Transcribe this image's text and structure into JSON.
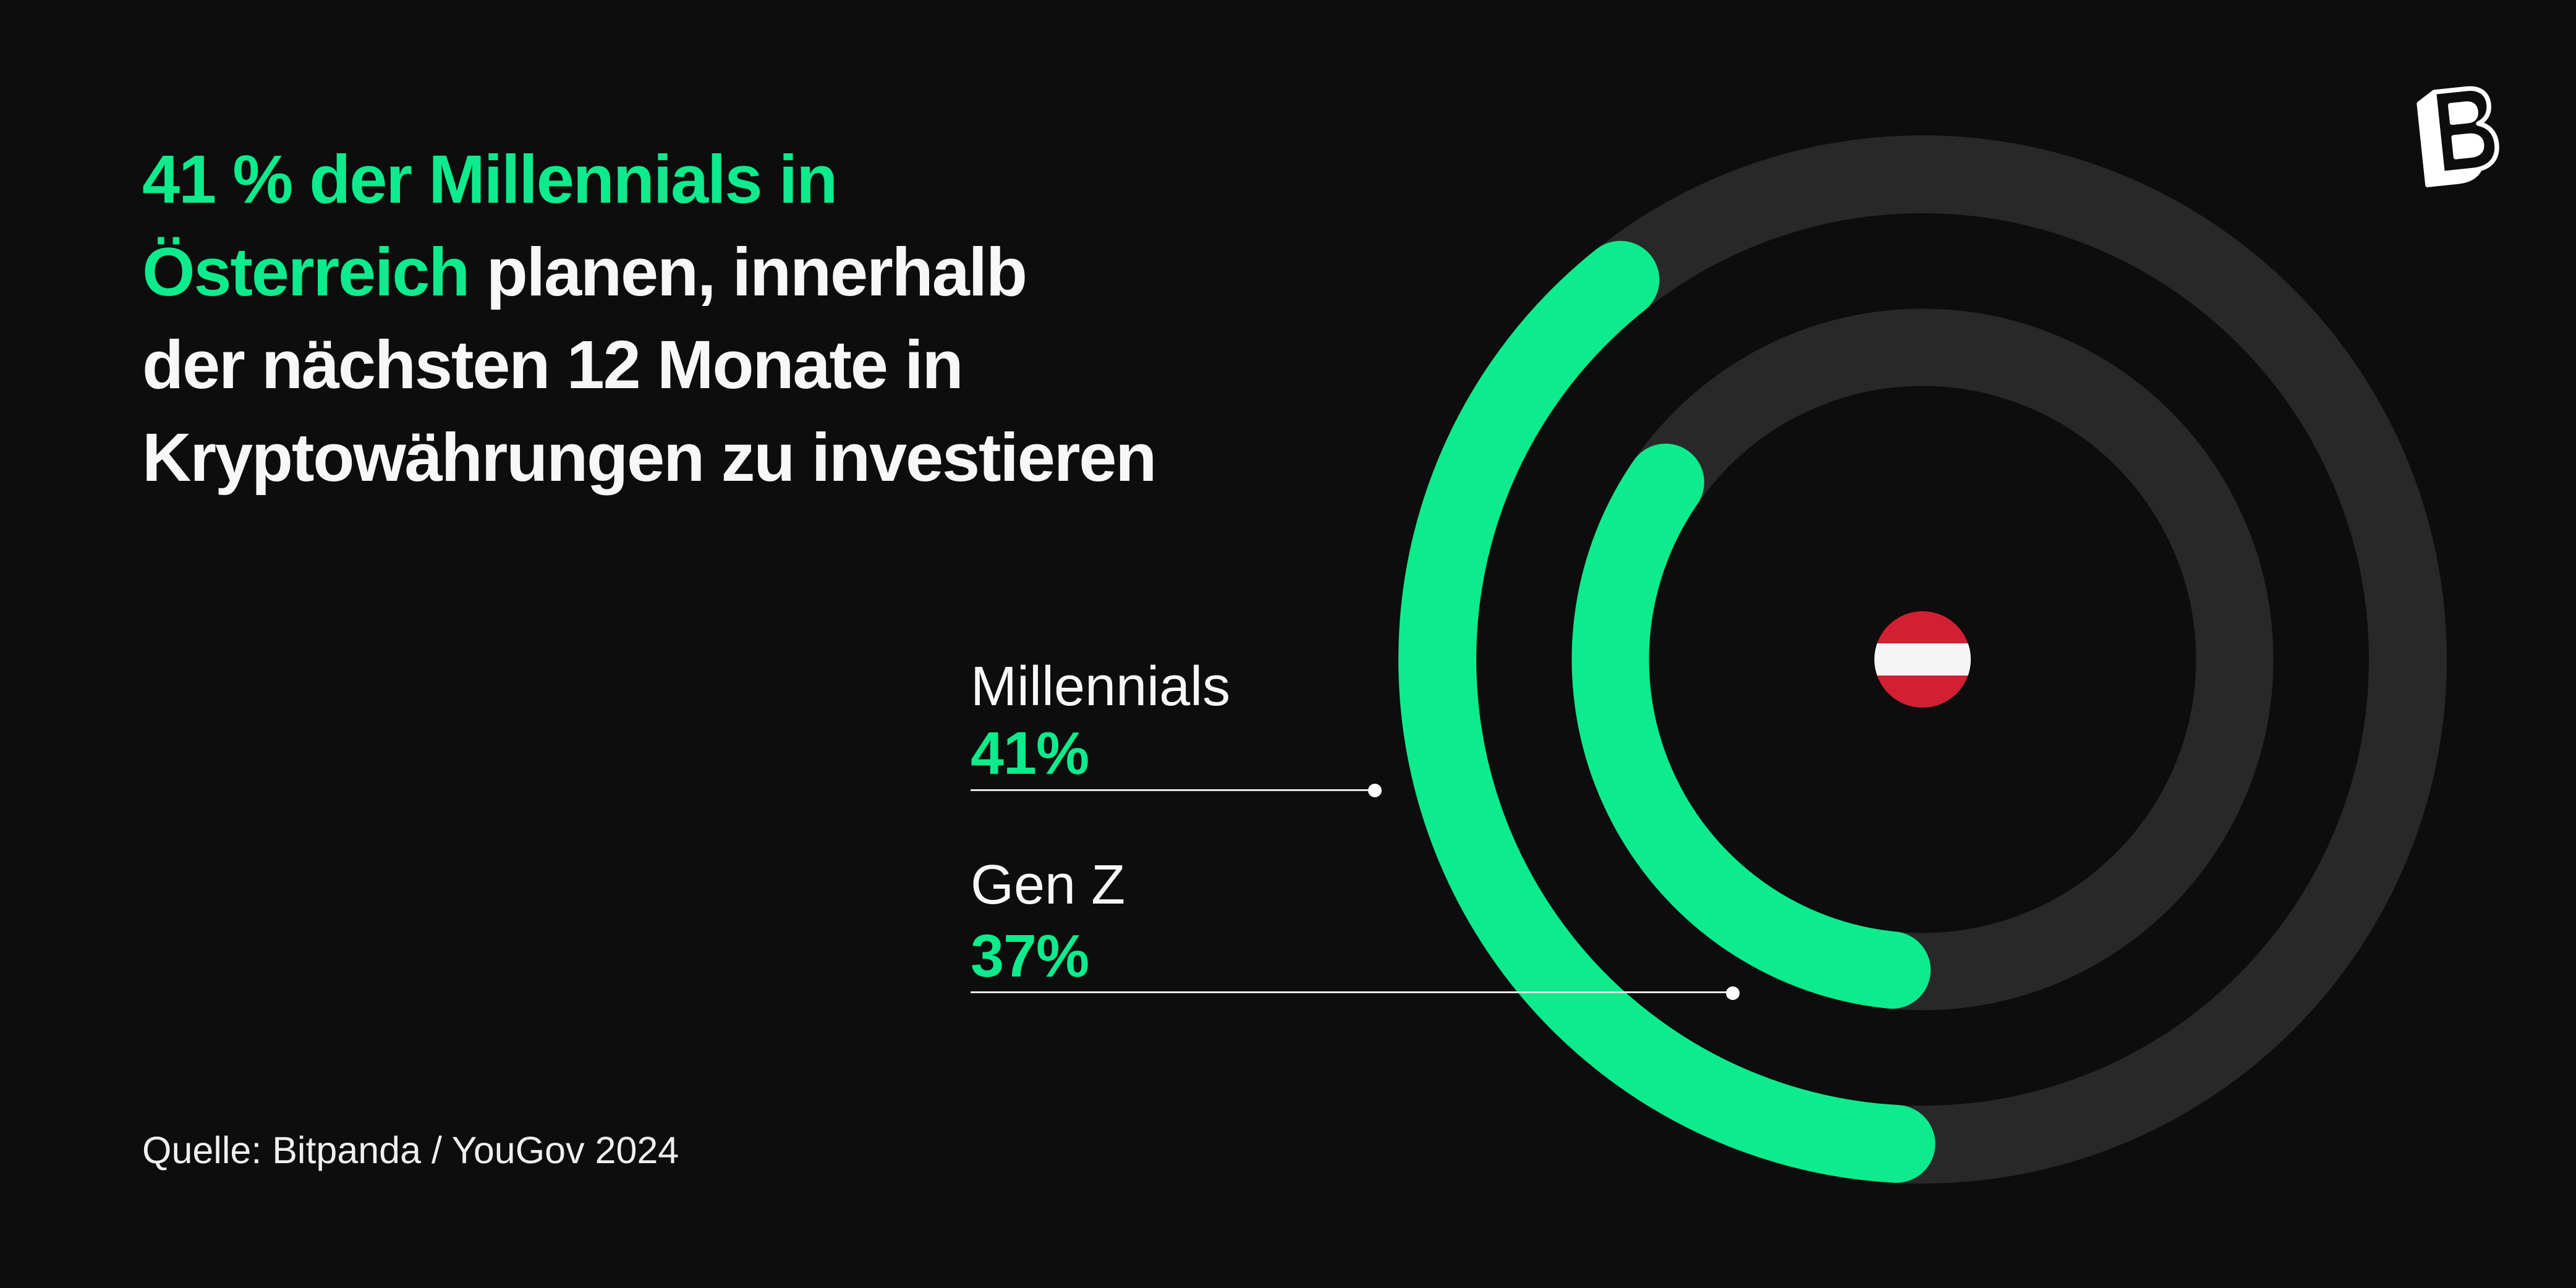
{
  "page": {
    "background": "#0C0D0C"
  },
  "headline": {
    "accent_color": "#0DEB8C",
    "text_color": "#F7F7F7",
    "lines": [
      [
        {
          "text": "41 % der Millennials in",
          "style": "accent"
        }
      ],
      [
        {
          "text": "Österreich",
          "style": "accent"
        },
        {
          "text": " planen, innerhalb",
          "style": "plain"
        }
      ],
      [
        {
          "text": "der nächsten 12 Monate in",
          "style": "plain"
        }
      ],
      [
        {
          "text": "Kryptowährungen zu investieren",
          "style": "plain"
        }
      ]
    ]
  },
  "source": {
    "label": "Quelle: Bitpanda / YouGov 2024"
  },
  "logo": {
    "name": "Bitpanda"
  },
  "chart_data": {
    "type": "radial-gauge",
    "unit": "%",
    "max_value": 100,
    "series": [
      {
        "name": "Millennials",
        "value": 41,
        "display": "41%",
        "ring": "outer"
      },
      {
        "name": "Gen Z",
        "value": 37,
        "display": "37%",
        "ring": "inner"
      }
    ],
    "center_icon": "austria-flag",
    "legend_position": "left",
    "colors": {
      "arc": "#0DEB8C",
      "track": "#282828",
      "flag_red": "#D21F33",
      "flag_white": "#F4F5F4",
      "leader_line": "#E8E8E8",
      "value_text": "#0DEB8C",
      "label_text": "#F7F7F7",
      "source_text": "#EFEFEF"
    }
  }
}
